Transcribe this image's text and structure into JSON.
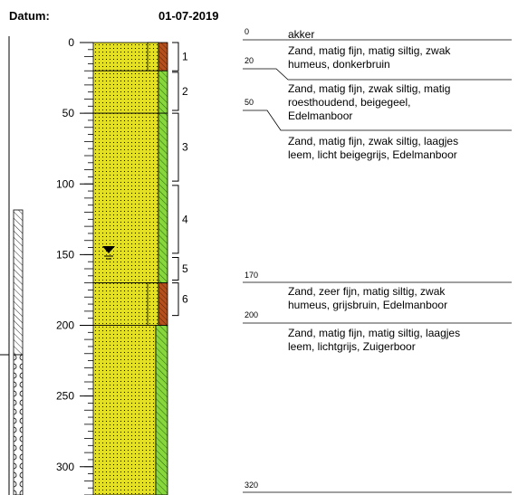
{
  "header": {
    "date_label": "Datum:",
    "date": "01-07-2019"
  },
  "depth_scale": {
    "ticks": [
      0,
      50,
      100,
      150,
      200,
      250,
      300
    ]
  },
  "samples": [
    "1",
    "2",
    "3",
    "4",
    "5",
    "6"
  ],
  "land_use": "akker",
  "layers": [
    {
      "top": 0,
      "description": [
        "Zand, matig fijn, matig siltig, zwak",
        "humeus, donkerbruin"
      ]
    },
    {
      "top": 20,
      "description": [
        "Zand, matig fijn, zwak siltig, matig",
        "roesthoudend, beigegeel,",
        "Edelmanboor"
      ]
    },
    {
      "top": 50,
      "description": [
        "Zand, matig fijn, zwak siltig, laagjes",
        "leem, licht beigegrijs, Edelmanboor"
      ]
    },
    {
      "top": 170,
      "description": [
        "Zand, zeer fijn, matig siltig, zwak",
        "humeus, grijsbruin, Edelmanboor"
      ]
    },
    {
      "top": 200,
      "description": [
        "Zand, matig fijn, matig siltig, laagjes",
        "leem, lichtgrijs, Zuigerboor"
      ]
    }
  ],
  "bottom": 320
}
